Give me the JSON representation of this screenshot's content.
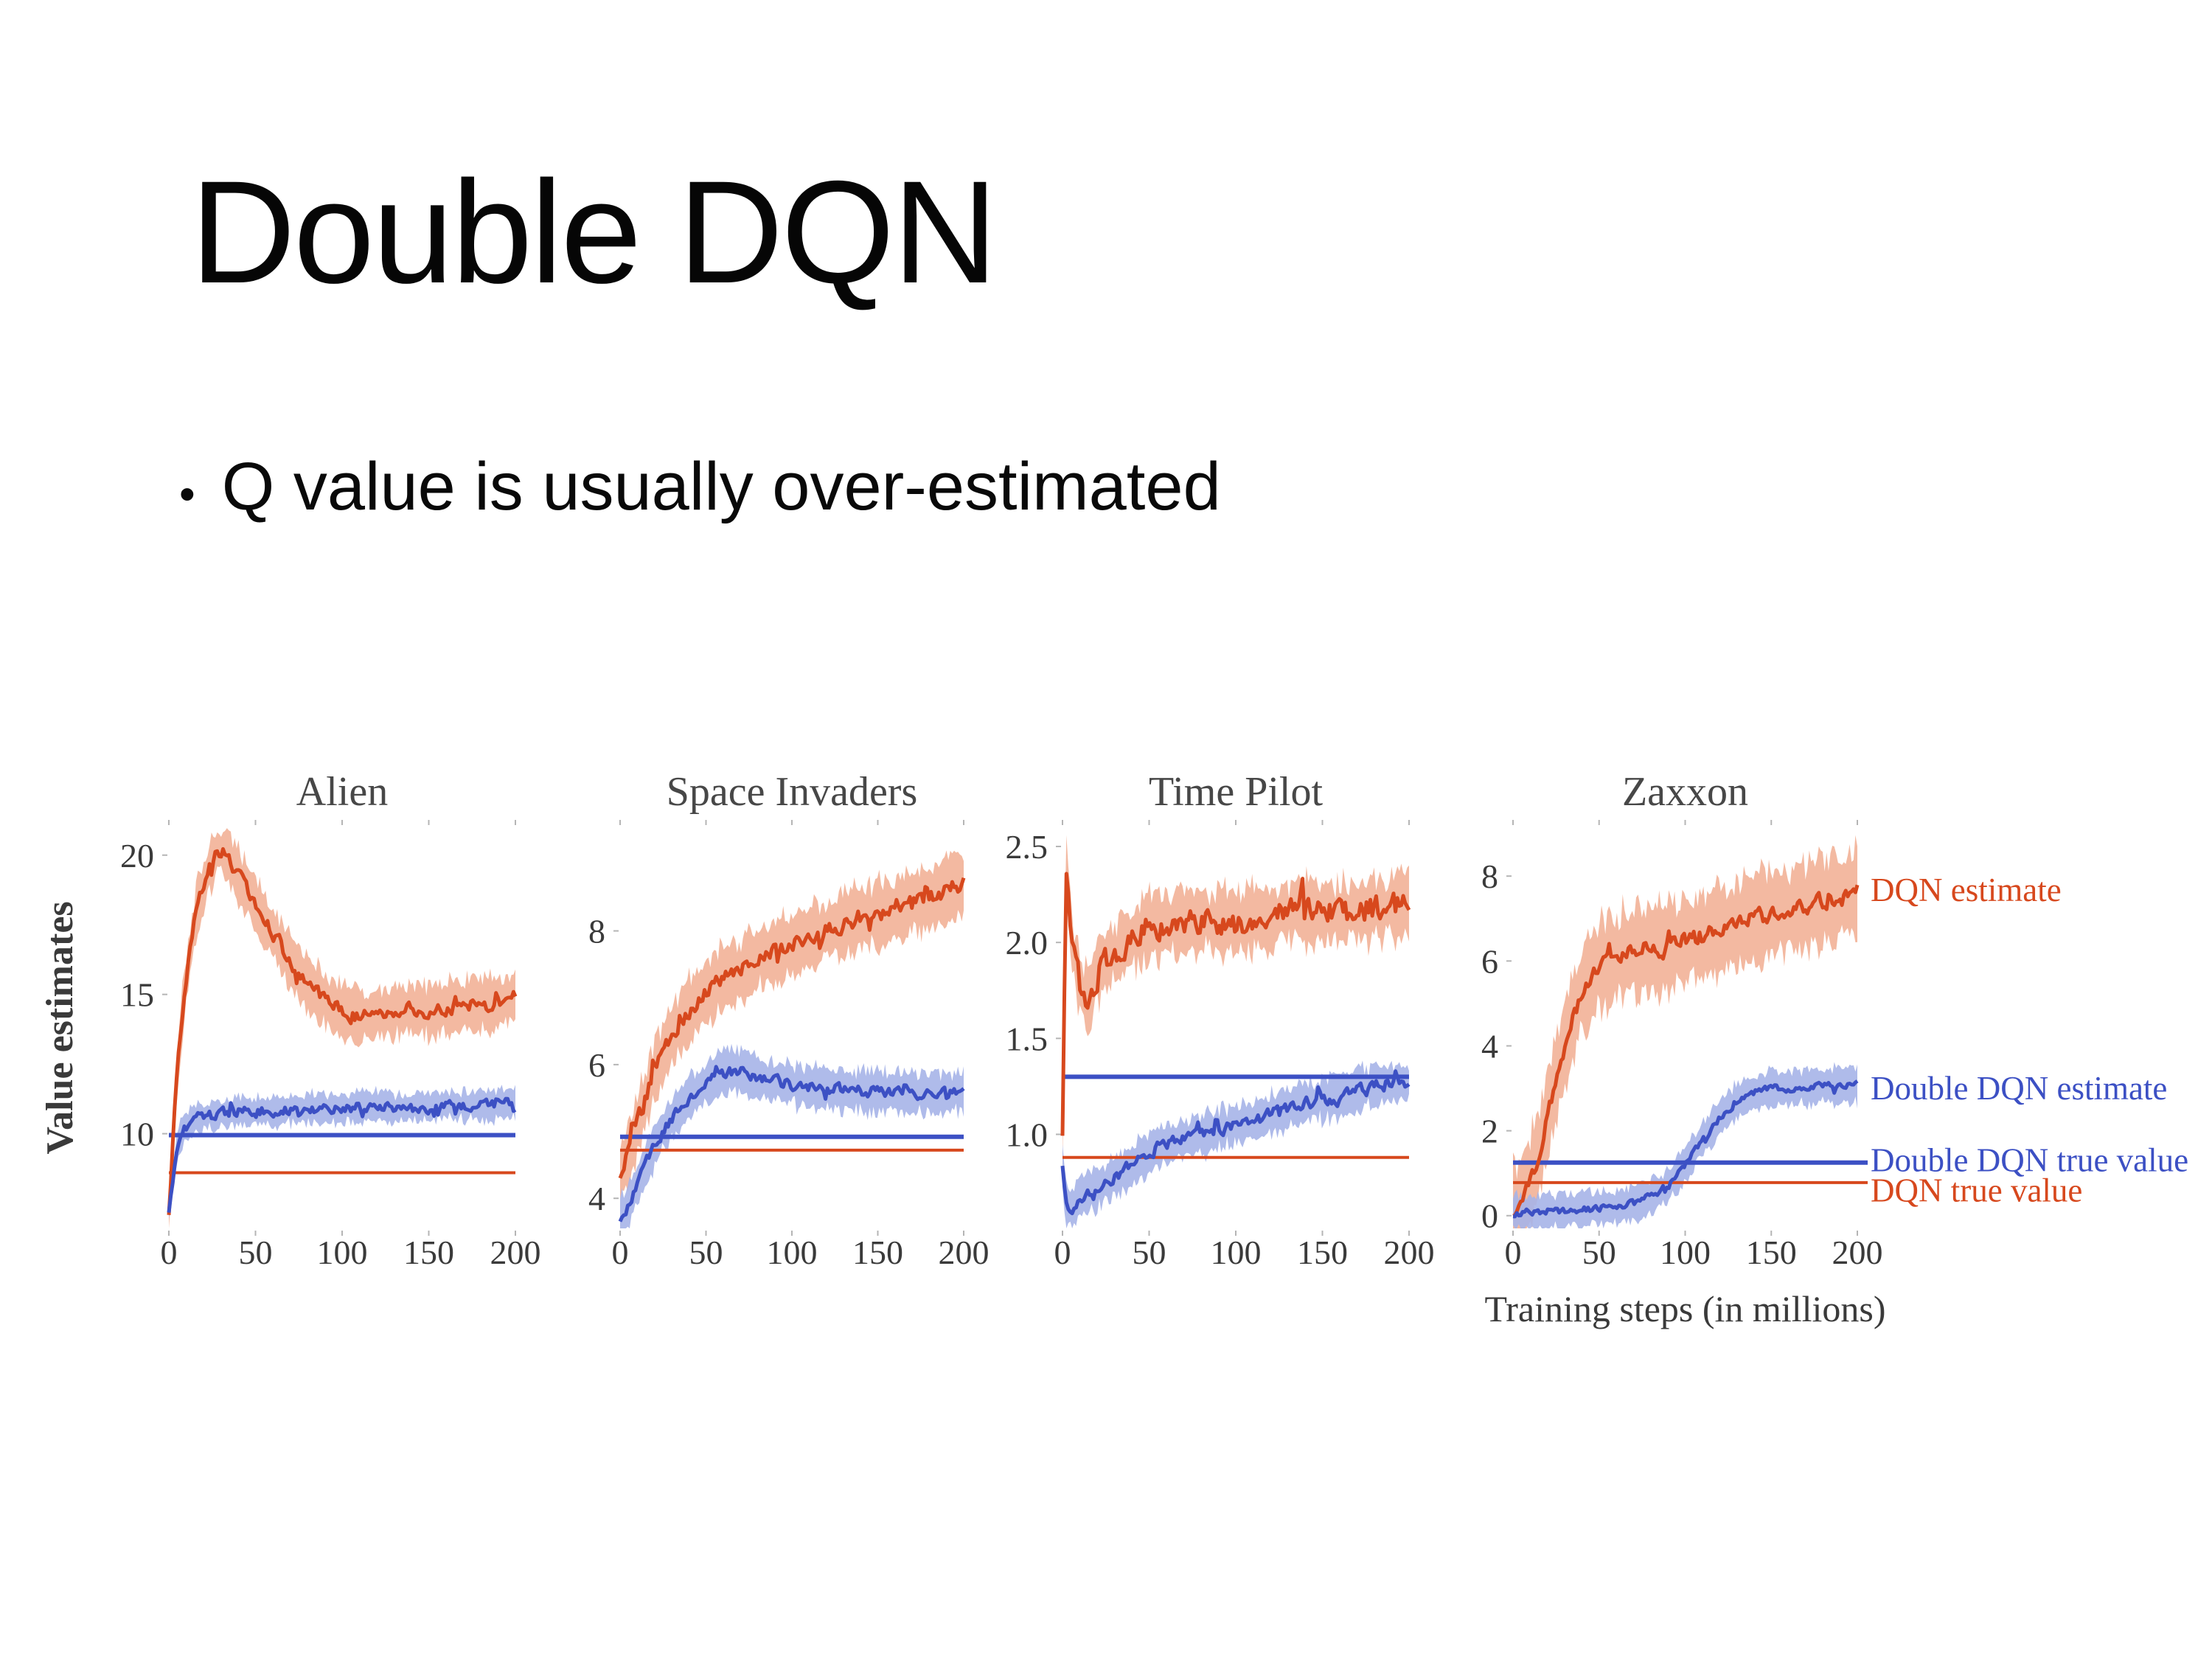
{
  "slide": {
    "title": "Double DQN",
    "bullet_char": "•",
    "bullet": "Q value is usually over-estimated"
  },
  "colors": {
    "dqn": "#d7481d",
    "dqn_band": "#f2b197",
    "ddqn": "#3c50c4",
    "ddqn_band": "#a6b4e8",
    "axis_text": "#3a3a3a",
    "title_text": "#474747",
    "tick_mark": "#b5b5b5"
  },
  "chart_data": {
    "type": "line",
    "xlabel": "Training steps (in millions)",
    "ylabel": "Value estimates",
    "xlim": [
      0,
      200
    ],
    "xticks": [
      0,
      50,
      100,
      150,
      200
    ],
    "legend": [
      {
        "label": "DQN estimate",
        "color": "dqn",
        "anchor_value": 7.66
      },
      {
        "label": "Double DQN estimate",
        "color": "ddqn",
        "anchor_value": 2.98
      },
      {
        "label": "Double DQN true value",
        "color": "ddqn",
        "anchor_value": 1.29
      },
      {
        "label": "DQN true value",
        "color": "dqn",
        "anchor_value": 0.58
      }
    ],
    "panels": [
      {
        "title": "Alien",
        "ylim": [
          6.6,
          21.0
        ],
        "yticks": [
          10,
          15,
          20
        ],
        "ytick_labels": [
          "10",
          "15",
          "20"
        ],
        "dqn_true": 8.6,
        "ddqn_true": 9.95,
        "series": {
          "dqn": {
            "x": [
              0,
              4,
              8,
              12,
              16,
              22,
              28,
              34,
              40,
              50,
              60,
              70,
              80,
              90,
              100,
              110,
              120,
              130,
              140,
              150,
              160,
              170,
              180,
              190,
              200
            ],
            "y": [
              7.0,
              11.5,
              14.5,
              16.5,
              18.0,
              19.3,
              20.2,
              20.0,
              19.3,
              18.2,
              17.2,
              16.2,
              15.4,
              14.8,
              14.4,
              14.2,
              14.3,
              14.4,
              14.5,
              14.4,
              14.5,
              14.6,
              14.6,
              14.7,
              15.0
            ],
            "band": 0.9,
            "noise": 0.35
          },
          "ddqn": {
            "x": [
              0,
              4,
              8,
              14,
              20,
              30,
              40,
              60,
              80,
              100,
              120,
              140,
              160,
              180,
              200
            ],
            "y": [
              7.2,
              9.3,
              10.1,
              10.5,
              10.6,
              10.7,
              10.8,
              10.8,
              10.9,
              10.9,
              11.0,
              10.9,
              11.0,
              11.0,
              11.1
            ],
            "band": 0.5,
            "noise": 0.28
          }
        }
      },
      {
        "title": "Space Invaders",
        "ylim": [
          3.55,
          9.55
        ],
        "yticks": [
          4,
          6,
          8
        ],
        "ytick_labels": [
          "4",
          "6",
          "8"
        ],
        "dqn_true": 4.72,
        "ddqn_true": 4.92,
        "series": {
          "dqn": {
            "x": [
              0,
              5,
              10,
              15,
              20,
              30,
              40,
              50,
              60,
              70,
              80,
              100,
              120,
              140,
              160,
              180,
              200
            ],
            "y": [
              4.4,
              4.7,
              5.1,
              5.5,
              5.9,
              6.4,
              6.8,
              7.1,
              7.3,
              7.4,
              7.6,
              7.8,
              8.0,
              8.2,
              8.3,
              8.5,
              8.7
            ],
            "band": 0.45,
            "noise": 0.18
          },
          "ddqn": {
            "x": [
              0,
              5,
              10,
              15,
              20,
              30,
              40,
              50,
              60,
              70,
              80,
              100,
              120,
              140,
              160,
              180,
              200
            ],
            "y": [
              3.7,
              3.9,
              4.2,
              4.5,
              4.8,
              5.2,
              5.5,
              5.7,
              5.9,
              5.9,
              5.8,
              5.7,
              5.65,
              5.6,
              5.6,
              5.55,
              5.6
            ],
            "band": 0.3,
            "noise": 0.12
          }
        }
      },
      {
        "title": "Time Pilot",
        "ylim": [
          0.51,
          2.6
        ],
        "yticks": [
          1.0,
          1.5,
          2.0,
          2.5
        ],
        "ytick_labels": [
          "1.0",
          "1.5",
          "2.0",
          "2.5"
        ],
        "dqn_true": 0.88,
        "ddqn_true": 1.3,
        "series": {
          "dqn": {
            "x": [
              0,
              2,
              4,
              7,
              10,
              15,
              20,
              30,
              40,
              50,
              60,
              80,
              100,
              120,
              140,
              160,
              180,
              200
            ],
            "y": [
              1.0,
              2.4,
              2.15,
              1.9,
              1.78,
              1.68,
              1.85,
              1.95,
              2.02,
              2.08,
              2.1,
              2.12,
              2.1,
              2.13,
              2.17,
              2.15,
              2.18,
              2.2
            ],
            "band": 0.16,
            "noise": 0.1
          },
          "ddqn": {
            "x": [
              0,
              2,
              5,
              10,
              20,
              30,
              40,
              50,
              60,
              80,
              100,
              120,
              140,
              160,
              180,
              200
            ],
            "y": [
              0.85,
              0.62,
              0.6,
              0.68,
              0.72,
              0.78,
              0.84,
              0.9,
              0.95,
              1.0,
              1.05,
              1.1,
              1.16,
              1.2,
              1.25,
              1.28
            ],
            "band": 0.1,
            "noise": 0.05
          }
        }
      },
      {
        "title": "Zaxxon",
        "ylim": [
          -0.3,
          9.15
        ],
        "yticks": [
          0,
          2,
          4,
          6,
          8
        ],
        "ytick_labels": [
          "0",
          "2",
          "4",
          "6",
          "8"
        ],
        "dqn_true": 0.78,
        "ddqn_true": 1.25,
        "series": {
          "dqn": {
            "x": [
              0,
              5,
              10,
              15,
              20,
              25,
              30,
              35,
              40,
              50,
              60,
              70,
              80,
              90,
              100,
              120,
              140,
              160,
              180,
              200
            ],
            "y": [
              0.1,
              0.3,
              0.8,
              1.5,
              2.3,
              3.2,
              4.0,
              4.7,
              5.3,
              5.9,
              6.1,
              6.2,
              6.3,
              6.3,
              6.5,
              6.7,
              7.0,
              7.2,
              7.4,
              7.6
            ],
            "band": 1.0,
            "noise": 0.3
          },
          "ddqn": {
            "x": [
              0,
              20,
              40,
              60,
              70,
              80,
              90,
              100,
              110,
              120,
              130,
              140,
              150,
              160,
              180,
              200
            ],
            "y": [
              0.05,
              0.1,
              0.15,
              0.2,
              0.3,
              0.45,
              0.7,
              1.2,
              1.8,
              2.3,
              2.7,
              2.9,
              3.0,
              3.0,
              3.05,
              3.1
            ],
            "band": 0.4,
            "noise": 0.12
          }
        }
      }
    ]
  }
}
